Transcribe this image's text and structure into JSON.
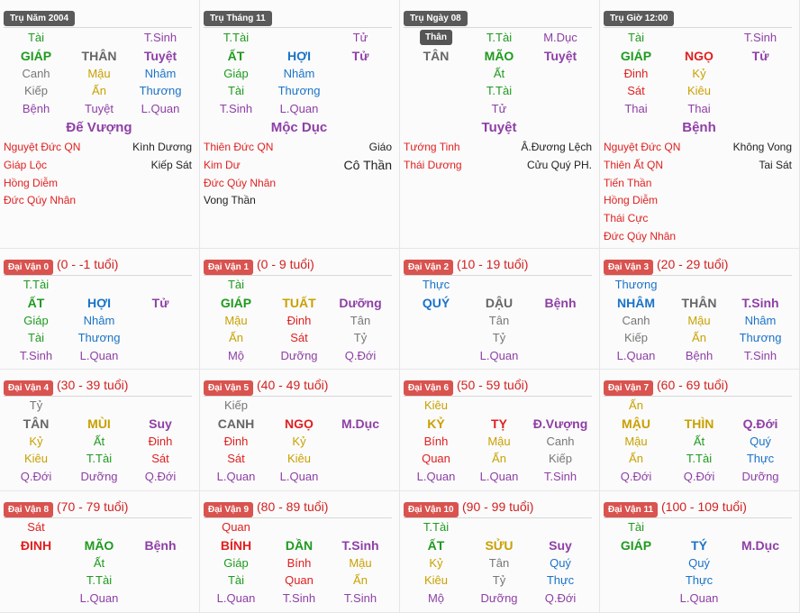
{
  "pillars": [
    {
      "header": "Trụ Năm 2004",
      "rows": [
        [
          [
            "Tài",
            "#1e9a1e"
          ],
          null,
          [
            "T.Sinh",
            "#8e3fa6"
          ]
        ],
        [
          [
            "GIÁP",
            "#1e9a1e"
          ],
          [
            "THÂN",
            "#666666"
          ],
          [
            "Tuyệt",
            "#8e3fa6"
          ]
        ],
        [
          [
            "Canh",
            "#777777"
          ],
          [
            "Mậu",
            "#c9a000"
          ],
          [
            "Nhâm",
            "#1a73c8"
          ]
        ],
        [
          [
            "Kiếp",
            "#777777"
          ],
          [
            "Ấn",
            "#c9a000"
          ],
          [
            "Thương",
            "#1a73c8"
          ]
        ],
        [
          [
            "Bệnh",
            "#8e3fa6"
          ],
          [
            "Tuyệt",
            "#8e3fa6"
          ],
          [
            "L.Quan",
            "#8e3fa6"
          ]
        ]
      ],
      "element": "Đế Vượng",
      "stars": [
        [
          [
            "Nguyệt Đức QN",
            "#e02020"
          ],
          [
            "Kình Dương",
            "#222222"
          ]
        ],
        [
          [
            "Giáp Lộc",
            "#e02020"
          ],
          [
            "Kiếp Sát",
            "#222222"
          ]
        ],
        [
          [
            "Hồng Diễm",
            "#e02020"
          ],
          null
        ],
        [
          [
            "Đức Qúy Nhân",
            "#e02020"
          ],
          null
        ]
      ]
    },
    {
      "header": "Trụ Tháng 11",
      "rows": [
        [
          [
            "T.Tài",
            "#1e9a1e"
          ],
          null,
          [
            "Tử",
            "#8e3fa6"
          ]
        ],
        [
          [
            "ẤT",
            "#1e9a1e"
          ],
          [
            "HỢI",
            "#1a73c8"
          ],
          [
            "Tử",
            "#8e3fa6"
          ]
        ],
        [
          [
            "Giáp",
            "#1e9a1e"
          ],
          [
            "Nhâm",
            "#1a73c8"
          ],
          null
        ],
        [
          [
            "Tài",
            "#1e9a1e"
          ],
          [
            "Thương",
            "#1a73c8"
          ],
          null
        ],
        [
          [
            "T.Sinh",
            "#8e3fa6"
          ],
          [
            "L.Quan",
            "#8e3fa6"
          ],
          null
        ]
      ],
      "element": "Mộc Dục",
      "stars": [
        [
          [
            "Thiên Đức QN",
            "#e02020"
          ],
          [
            "Giáo",
            "#222222"
          ]
        ],
        [
          [
            "Kim Dư",
            "#e02020"
          ],
          [
            "Cô Thần",
            "#222222"
          ]
        ],
        [
          [
            "Đức Qúy Nhân",
            "#e02020"
          ],
          null
        ],
        [
          [
            "Vong Thần",
            "#222222"
          ],
          null
        ]
      ]
    },
    {
      "header": "Trụ Ngày 08",
      "badge": "Thân",
      "rows": [
        [
          null,
          [
            "T.Tài",
            "#1e9a1e"
          ],
          [
            "M.Dục",
            "#8e3fa6"
          ]
        ],
        [
          [
            "TÂN",
            "#666666"
          ],
          [
            "MÃO",
            "#1e9a1e"
          ],
          [
            "Tuyệt",
            "#8e3fa6"
          ]
        ],
        [
          null,
          [
            "Ất",
            "#1e9a1e"
          ],
          null
        ],
        [
          null,
          [
            "T.Tài",
            "#1e9a1e"
          ],
          null
        ],
        [
          null,
          [
            "Tử",
            "#8e3fa6"
          ],
          null
        ]
      ],
      "element": "Tuyệt",
      "stars": [
        [
          [
            "Tướng Tinh",
            "#e02020"
          ],
          [
            "Â.Đương Lệch",
            "#222222"
          ]
        ],
        [
          [
            "Thái Dương",
            "#e02020"
          ],
          [
            "Cửu Quý PH.",
            "#222222"
          ]
        ]
      ]
    },
    {
      "header": "Trụ Giờ 12:00",
      "rows": [
        [
          [
            "Tài",
            "#1e9a1e"
          ],
          null,
          [
            "T.Sinh",
            "#8e3fa6"
          ]
        ],
        [
          [
            "GIÁP",
            "#1e9a1e"
          ],
          [
            "NGỌ",
            "#e02020"
          ],
          [
            "Tử",
            "#8e3fa6"
          ]
        ],
        [
          [
            "Đinh",
            "#e02020"
          ],
          [
            "Kỷ",
            "#c9a000"
          ],
          null
        ],
        [
          [
            "Sát",
            "#e02020"
          ],
          [
            "Kiêu",
            "#c9a000"
          ],
          null
        ],
        [
          [
            "Thai",
            "#8e3fa6"
          ],
          [
            "Thai",
            "#8e3fa6"
          ],
          null
        ]
      ],
      "element": "Bệnh",
      "stars": [
        [
          [
            "Nguyệt Đức QN",
            "#e02020"
          ],
          [
            "Không Vong",
            "#222222"
          ]
        ],
        [
          [
            "Thiên Ất QN",
            "#e02020"
          ],
          [
            "Tai Sát",
            "#222222"
          ]
        ],
        [
          [
            "Tiến Thần",
            "#e02020"
          ],
          null
        ],
        [
          [
            "Hồng Diễm",
            "#e02020"
          ],
          null
        ],
        [
          [
            "Thái Cực",
            "#e02020"
          ],
          null
        ],
        [
          [
            "Đức Qúy Nhân",
            "#e02020"
          ],
          null
        ]
      ]
    }
  ],
  "luck_cycles": [
    {
      "label": "Đại Vận 0",
      "range": "(0 - -1 tuổi)",
      "rows": [
        [
          [
            "T.Tài",
            "#1e9a1e"
          ],
          null,
          null
        ],
        [
          [
            "ẤT",
            "#1e9a1e"
          ],
          [
            "HỢI",
            "#1a73c8"
          ],
          [
            "Tử",
            "#8e3fa6"
          ]
        ],
        [
          [
            "Giáp",
            "#1e9a1e"
          ],
          [
            "Nhâm",
            "#1a73c8"
          ],
          null
        ],
        [
          [
            "Tài",
            "#1e9a1e"
          ],
          [
            "Thương",
            "#1a73c8"
          ],
          null
        ],
        [
          [
            "T.Sinh",
            "#8e3fa6"
          ],
          [
            "L.Quan",
            "#8e3fa6"
          ],
          null
        ]
      ]
    },
    {
      "label": "Đại Vận 1",
      "range": "(0 - 9 tuổi)",
      "rows": [
        [
          [
            "Tài",
            "#1e9a1e"
          ],
          null,
          null
        ],
        [
          [
            "GIÁP",
            "#1e9a1e"
          ],
          [
            "TUẤT",
            "#c9a000"
          ],
          [
            "Dưỡng",
            "#8e3fa6"
          ]
        ],
        [
          [
            "Mậu",
            "#c9a000"
          ],
          [
            "Đinh",
            "#e02020"
          ],
          [
            "Tân",
            "#777777"
          ]
        ],
        [
          [
            "Ấn",
            "#c9a000"
          ],
          [
            "Sát",
            "#e02020"
          ],
          [
            "Tỷ",
            "#777777"
          ]
        ],
        [
          [
            "Mộ",
            "#8e3fa6"
          ],
          [
            "Dưỡng",
            "#8e3fa6"
          ],
          [
            "Q.Đới",
            "#8e3fa6"
          ]
        ]
      ]
    },
    {
      "label": "Đại Vận 2",
      "range": "(10 - 19 tuổi)",
      "rows": [
        [
          [
            "Thực",
            "#1a73c8"
          ],
          null,
          null
        ],
        [
          [
            "QUÝ",
            "#1a73c8"
          ],
          [
            "DẬU",
            "#666666"
          ],
          [
            "Bệnh",
            "#8e3fa6"
          ]
        ],
        [
          null,
          [
            "Tân",
            "#777777"
          ],
          null
        ],
        [
          null,
          [
            "Tỷ",
            "#777777"
          ],
          null
        ],
        [
          null,
          [
            "L.Quan",
            "#8e3fa6"
          ],
          null
        ]
      ]
    },
    {
      "label": "Đại Vận 3",
      "range": "(20 - 29 tuổi)",
      "rows": [
        [
          [
            "Thương",
            "#1a73c8"
          ],
          null,
          null
        ],
        [
          [
            "NHÂM",
            "#1a73c8"
          ],
          [
            "THÂN",
            "#666666"
          ],
          [
            "T.Sinh",
            "#8e3fa6"
          ]
        ],
        [
          [
            "Canh",
            "#777777"
          ],
          [
            "Mậu",
            "#c9a000"
          ],
          [
            "Nhâm",
            "#1a73c8"
          ]
        ],
        [
          [
            "Kiếp",
            "#777777"
          ],
          [
            "Ấn",
            "#c9a000"
          ],
          [
            "Thương",
            "#1a73c8"
          ]
        ],
        [
          [
            "L.Quan",
            "#8e3fa6"
          ],
          [
            "Bệnh",
            "#8e3fa6"
          ],
          [
            "T.Sinh",
            "#8e3fa6"
          ]
        ]
      ]
    },
    {
      "label": "Đại Vận 4",
      "range": "(30 - 39 tuổi)",
      "rows": [
        [
          [
            "Tỷ",
            "#777777"
          ],
          null,
          null
        ],
        [
          [
            "TÂN",
            "#666666"
          ],
          [
            "MÙI",
            "#c9a000"
          ],
          [
            "Suy",
            "#8e3fa6"
          ]
        ],
        [
          [
            "Kỷ",
            "#c9a000"
          ],
          [
            "Ất",
            "#1e9a1e"
          ],
          [
            "Đinh",
            "#e02020"
          ]
        ],
        [
          [
            "Kiêu",
            "#c9a000"
          ],
          [
            "T.Tài",
            "#1e9a1e"
          ],
          [
            "Sát",
            "#e02020"
          ]
        ],
        [
          [
            "Q.Đới",
            "#8e3fa6"
          ],
          [
            "Dưỡng",
            "#8e3fa6"
          ],
          [
            "Q.Đới",
            "#8e3fa6"
          ]
        ]
      ]
    },
    {
      "label": "Đại Vận 5",
      "range": "(40 - 49 tuổi)",
      "rows": [
        [
          [
            "Kiếp",
            "#777777"
          ],
          null,
          null
        ],
        [
          [
            "CANH",
            "#666666"
          ],
          [
            "NGỌ",
            "#e02020"
          ],
          [
            "M.Dục",
            "#8e3fa6"
          ]
        ],
        [
          [
            "Đinh",
            "#e02020"
          ],
          [
            "Kỷ",
            "#c9a000"
          ],
          null
        ],
        [
          [
            "Sát",
            "#e02020"
          ],
          [
            "Kiêu",
            "#c9a000"
          ],
          null
        ],
        [
          [
            "L.Quan",
            "#8e3fa6"
          ],
          [
            "L.Quan",
            "#8e3fa6"
          ],
          null
        ]
      ]
    },
    {
      "label": "Đại Vận 6",
      "range": "(50 - 59 tuổi)",
      "rows": [
        [
          [
            "Kiêu",
            "#c9a000"
          ],
          null,
          null
        ],
        [
          [
            "KỶ",
            "#c9a000"
          ],
          [
            "TỴ",
            "#e02020"
          ],
          [
            "Đ.Vượng",
            "#8e3fa6"
          ]
        ],
        [
          [
            "Bính",
            "#e02020"
          ],
          [
            "Mậu",
            "#c9a000"
          ],
          [
            "Canh",
            "#777777"
          ]
        ],
        [
          [
            "Quan",
            "#e02020"
          ],
          [
            "Ấn",
            "#c9a000"
          ],
          [
            "Kiếp",
            "#777777"
          ]
        ],
        [
          [
            "L.Quan",
            "#8e3fa6"
          ],
          [
            "L.Quan",
            "#8e3fa6"
          ],
          [
            "T.Sinh",
            "#8e3fa6"
          ]
        ]
      ]
    },
    {
      "label": "Đại Vận 7",
      "range": "(60 - 69 tuổi)",
      "rows": [
        [
          [
            "Ấn",
            "#c9a000"
          ],
          null,
          null
        ],
        [
          [
            "MẬU",
            "#c9a000"
          ],
          [
            "THÌN",
            "#c9a000"
          ],
          [
            "Q.Đới",
            "#8e3fa6"
          ]
        ],
        [
          [
            "Mậu",
            "#c9a000"
          ],
          [
            "Ất",
            "#1e9a1e"
          ],
          [
            "Quý",
            "#1a73c8"
          ]
        ],
        [
          [
            "Ấn",
            "#c9a000"
          ],
          [
            "T.Tài",
            "#1e9a1e"
          ],
          [
            "Thực",
            "#1a73c8"
          ]
        ],
        [
          [
            "Q.Đới",
            "#8e3fa6"
          ],
          [
            "Q.Đới",
            "#8e3fa6"
          ],
          [
            "Dưỡng",
            "#8e3fa6"
          ]
        ]
      ]
    },
    {
      "label": "Đại Vận 8",
      "range": "(70 - 79 tuổi)",
      "rows": [
        [
          [
            "Sát",
            "#e02020"
          ],
          null,
          null
        ],
        [
          [
            "ĐINH",
            "#e02020"
          ],
          [
            "MÃO",
            "#1e9a1e"
          ],
          [
            "Bệnh",
            "#8e3fa6"
          ]
        ],
        [
          null,
          [
            "Ất",
            "#1e9a1e"
          ],
          null
        ],
        [
          null,
          [
            "T.Tài",
            "#1e9a1e"
          ],
          null
        ],
        [
          null,
          [
            "L.Quan",
            "#8e3fa6"
          ],
          null
        ]
      ]
    },
    {
      "label": "Đại Vận 9",
      "range": "(80 - 89 tuổi)",
      "rows": [
        [
          [
            "Quan",
            "#e02020"
          ],
          null,
          null
        ],
        [
          [
            "BÍNH",
            "#e02020"
          ],
          [
            "DẦN",
            "#1e9a1e"
          ],
          [
            "T.Sinh",
            "#8e3fa6"
          ]
        ],
        [
          [
            "Giáp",
            "#1e9a1e"
          ],
          [
            "Bính",
            "#e02020"
          ],
          [
            "Mậu",
            "#c9a000"
          ]
        ],
        [
          [
            "Tài",
            "#1e9a1e"
          ],
          [
            "Quan",
            "#e02020"
          ],
          [
            "Ấn",
            "#c9a000"
          ]
        ],
        [
          [
            "L.Quan",
            "#8e3fa6"
          ],
          [
            "T.Sinh",
            "#8e3fa6"
          ],
          [
            "T.Sinh",
            "#8e3fa6"
          ]
        ]
      ]
    },
    {
      "label": "Đại Vận 10",
      "range": "(90 - 99 tuổi)",
      "rows": [
        [
          [
            "T.Tài",
            "#1e9a1e"
          ],
          null,
          null
        ],
        [
          [
            "ẤT",
            "#1e9a1e"
          ],
          [
            "SỬU",
            "#c9a000"
          ],
          [
            "Suy",
            "#8e3fa6"
          ]
        ],
        [
          [
            "Kỷ",
            "#c9a000"
          ],
          [
            "Tân",
            "#777777"
          ],
          [
            "Quý",
            "#1a73c8"
          ]
        ],
        [
          [
            "Kiêu",
            "#c9a000"
          ],
          [
            "Tỷ",
            "#777777"
          ],
          [
            "Thực",
            "#1a73c8"
          ]
        ],
        [
          [
            "Mộ",
            "#8e3fa6"
          ],
          [
            "Dưỡng",
            "#8e3fa6"
          ],
          [
            "Q.Đới",
            "#8e3fa6"
          ]
        ]
      ]
    },
    {
      "label": "Đại Vận 11",
      "range": "(100 - 109 tuổi)",
      "rows": [
        [
          [
            "Tài",
            "#1e9a1e"
          ],
          null,
          null
        ],
        [
          [
            "GIÁP",
            "#1e9a1e"
          ],
          [
            "TÝ",
            "#1a73c8"
          ],
          [
            "M.Dục",
            "#8e3fa6"
          ]
        ],
        [
          null,
          [
            "Quý",
            "#1a73c8"
          ],
          null
        ],
        [
          null,
          [
            "Thực",
            "#1a73c8"
          ],
          null
        ],
        [
          null,
          [
            "L.Quan",
            "#8e3fa6"
          ],
          null
        ]
      ]
    }
  ]
}
